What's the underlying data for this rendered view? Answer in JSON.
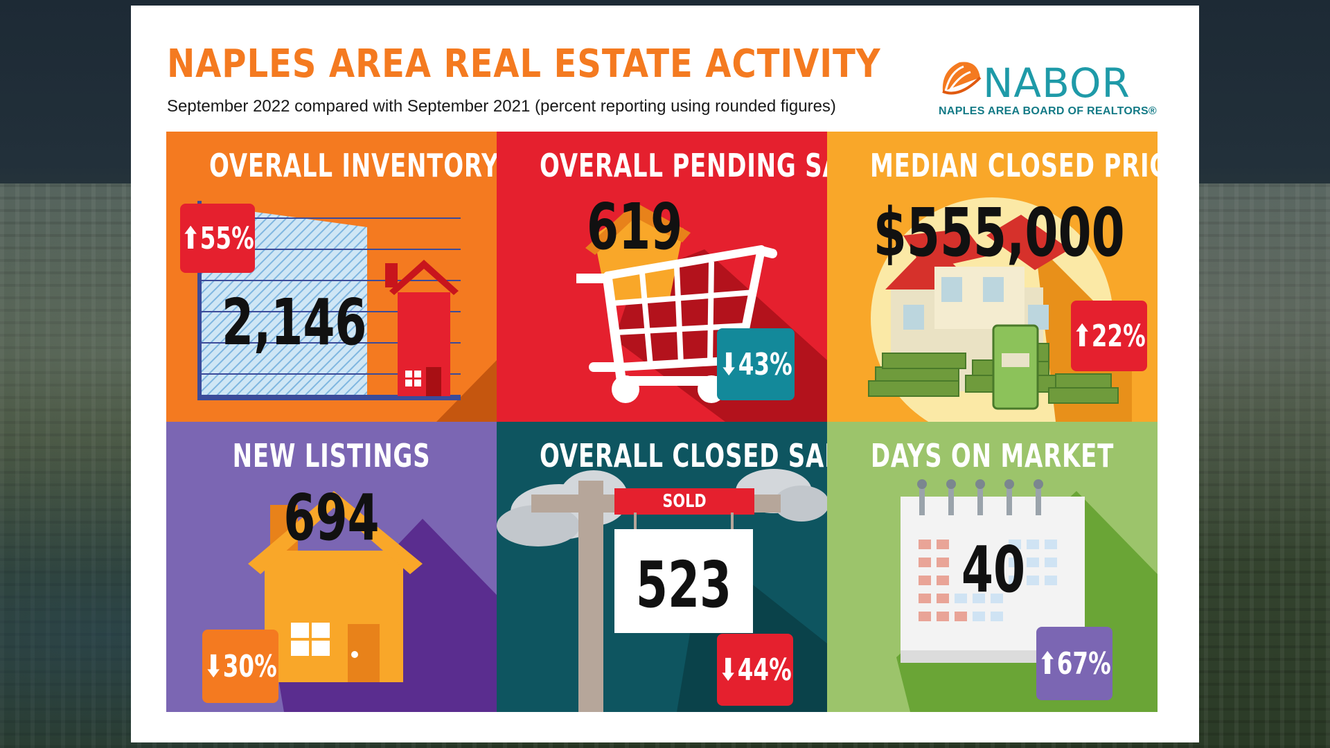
{
  "header": {
    "title": "NAPLES AREA REAL ESTATE ACTIVITY",
    "subtitle": "September 2022 compared with September 2021 (percent reporting using rounded figures)"
  },
  "logo": {
    "name": "NABOR",
    "tagline": "NAPLES AREA BOARD OF REALTORS®"
  },
  "panels": {
    "inventory": {
      "title": "OVERALL INVENTORY",
      "value": "2,146",
      "change": "⬆55%",
      "color": "#f47a20"
    },
    "pending": {
      "title": "OVERALL PENDING SALES",
      "value": "619",
      "change": "⬇43%",
      "color": "#e5202e"
    },
    "median": {
      "title": "MEDIAN CLOSED PRICE",
      "value": "$555,000",
      "change": "⬆22%",
      "color": "#f9a729"
    },
    "listings": {
      "title": "NEW LISTINGS",
      "value": "694",
      "change": "⬇30%",
      "color": "#7b66b3"
    },
    "closed": {
      "title": "OVERALL CLOSED SALES",
      "value": "523",
      "change": "⬇44%",
      "sign": "SOLD",
      "color": "#0e5560"
    },
    "dom": {
      "title": "DAYS ON MARKET",
      "value": "40",
      "change": "⬆67%",
      "color": "#8dbf5a"
    }
  },
  "icons": [
    "house-icon",
    "shopping-cart-icon",
    "money-stack-icon",
    "for-sale-sign-icon",
    "calendar-icon",
    "cloud-icon"
  ]
}
